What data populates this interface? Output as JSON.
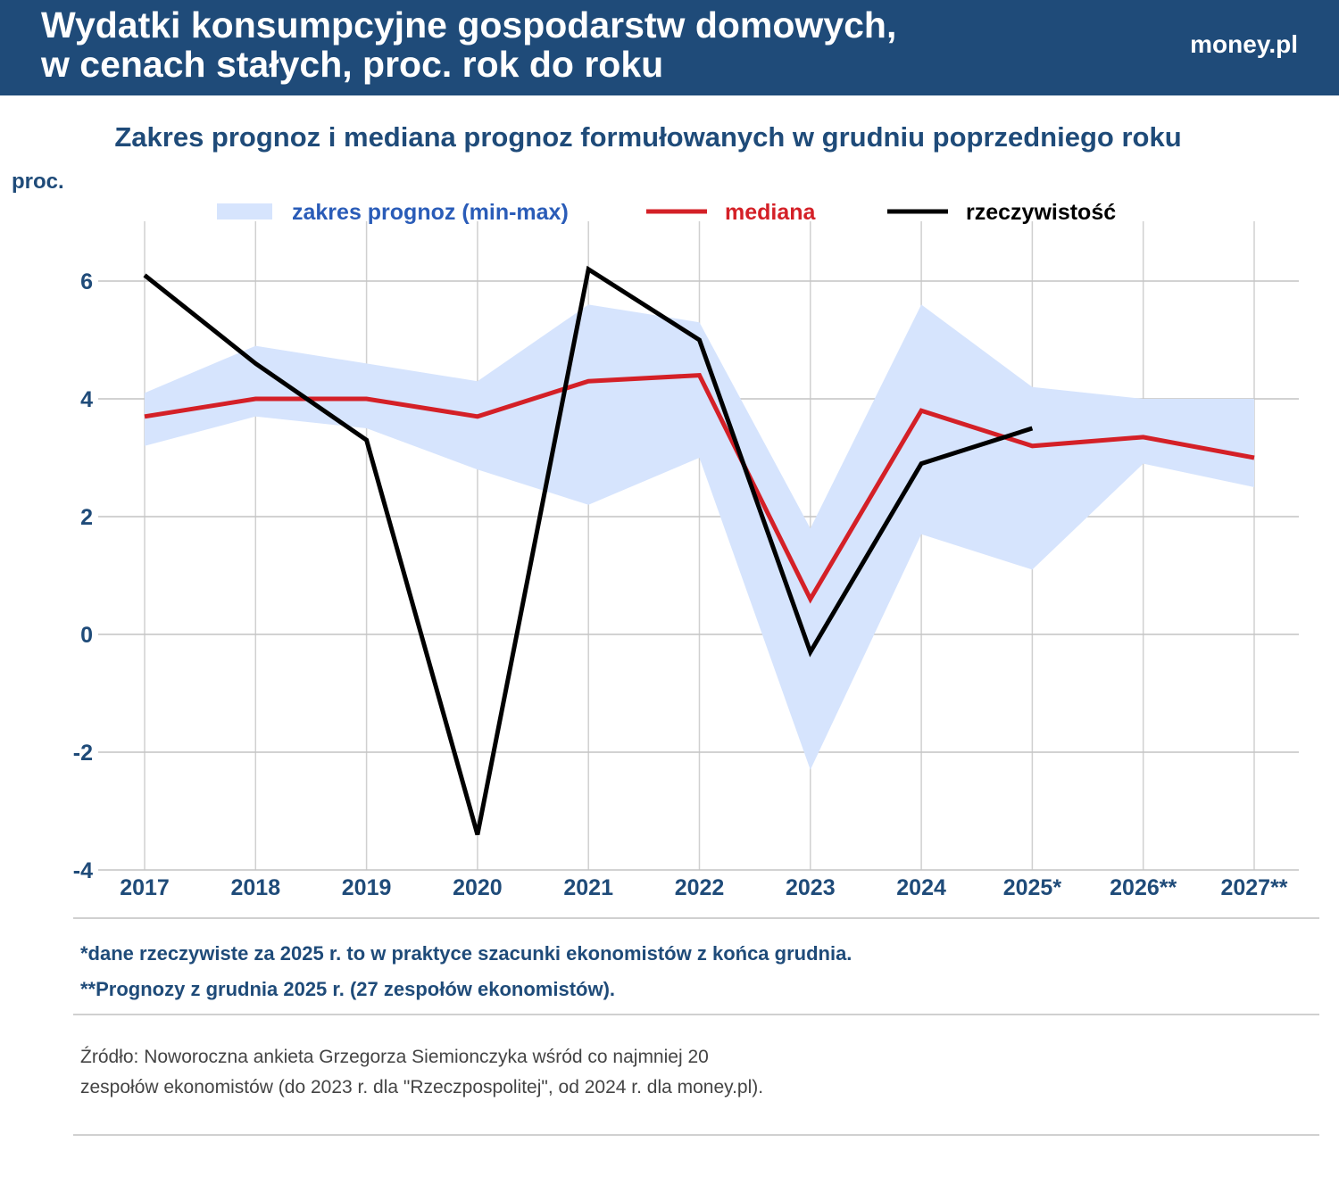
{
  "header": {
    "title": "Wydatki konsumpcyjne gospodarstw domowych,\nw cenach stałych, proc. rok do roku",
    "brand": "money.pl"
  },
  "chart_data": {
    "type": "line",
    "title": "Zakres prognoz i mediana prognoz formułowanych w grudniu poprzedniego roku",
    "ylabel": "proc.",
    "ylim": [
      -4,
      7
    ],
    "yticks": [
      "-4",
      "-2",
      "0",
      "2",
      "4",
      "6"
    ],
    "categories": [
      "2017",
      "2018",
      "2019",
      "2020",
      "2021",
      "2022",
      "2023",
      "2024",
      "2025*",
      "2026**",
      "2027**"
    ],
    "grid": true,
    "legend_position": "top",
    "range": {
      "name": "zakres prognoz (min-max)",
      "color": "#d6e4fd",
      "max": [
        4.1,
        4.9,
        4.6,
        4.3,
        5.6,
        5.3,
        1.8,
        5.6,
        4.2,
        4.0,
        4.0
      ],
      "min": [
        3.2,
        3.7,
        3.5,
        2.8,
        2.2,
        3.0,
        -2.3,
        1.7,
        1.1,
        2.9,
        2.5
      ]
    },
    "series": [
      {
        "name": "mediana",
        "color": "#d42027",
        "values": [
          3.7,
          4.0,
          4.0,
          3.7,
          4.3,
          4.4,
          0.6,
          3.8,
          3.2,
          3.35,
          3.0
        ]
      },
      {
        "name": "rzeczywistość",
        "color": "#000000",
        "values": [
          6.1,
          4.6,
          3.3,
          -3.4,
          6.2,
          5.0,
          -0.3,
          2.9,
          3.5,
          null,
          null
        ]
      }
    ]
  },
  "notes": [
    "*dane rzeczywiste za 2025 r. to w praktyce szacunki ekonomistów z końca grudnia.",
    "**Prognozy z grudnia 2025 r. (27 zespołów ekonomistów)."
  ],
  "source": [
    "Źródło: Noworoczna ankieta Grzegorza Siemionczyka wśród co najmniej 20",
    "zespołów ekonomistów (do  2023 r. dla \"Rzeczpospolitej\", od 2024 r. dla money.pl)."
  ]
}
